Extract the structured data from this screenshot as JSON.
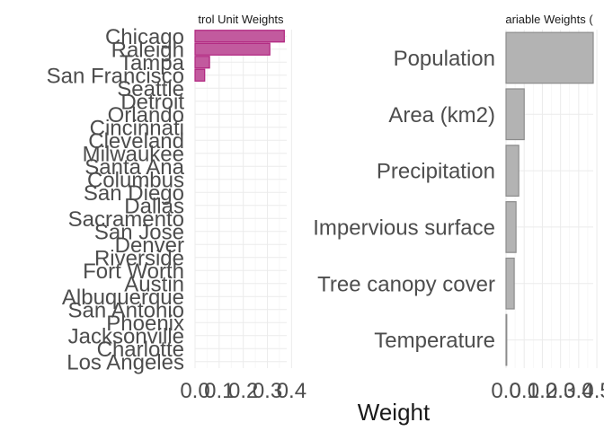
{
  "figure": {
    "xlabel": "Weight"
  },
  "chart_data": [
    {
      "type": "bar",
      "orientation": "horizontal",
      "title": "trol Unit Weights",
      "categories": [
        "Chicago",
        "Raleigh",
        "Tampa",
        "San Francisco",
        "Seattle",
        "Detroit",
        "Orlando",
        "Cincinnati",
        "Cleveland",
        "Milwaukee",
        "Santa Ana",
        "Columbus",
        "San Diego",
        "Dallas",
        "Sacramento",
        "San Jose",
        "Denver",
        "Riverside",
        "Fort Worth",
        "Austin",
        "Albuquerque",
        "San Antonio",
        "Phoenix",
        "Jacksonville",
        "Charlotte",
        "Los Angeles"
      ],
      "values": [
        0.37,
        0.31,
        0.06,
        0.04,
        0,
        0,
        0,
        0,
        0,
        0,
        0,
        0,
        0,
        0,
        0,
        0,
        0,
        0,
        0,
        0,
        0,
        0,
        0,
        0,
        0,
        0
      ],
      "xticks": [
        "0.0",
        "0.1",
        "0.2",
        "0.3",
        "0.4"
      ],
      "xlim": [
        0,
        0.38
      ],
      "bar_color": "#C25A9E",
      "bar_edge": "#B0237E",
      "grid": true
    },
    {
      "type": "bar",
      "orientation": "horizontal",
      "title": "ariable Weights (",
      "categories": [
        "Population",
        "Area (km2)",
        "Precipitation",
        "Impervious surface",
        "Tree canopy cover",
        "Temperature"
      ],
      "values": [
        0.48,
        0.1,
        0.07,
        0.055,
        0.045,
        0.004
      ],
      "xticks": [
        "0.0",
        "0.1",
        "0.2",
        "0.3",
        "0.4",
        "0.5"
      ],
      "xlim": [
        0,
        0.48
      ],
      "bar_color": "#B3B3B3",
      "bar_edge": "#8C8C8C",
      "grid": true
    }
  ]
}
